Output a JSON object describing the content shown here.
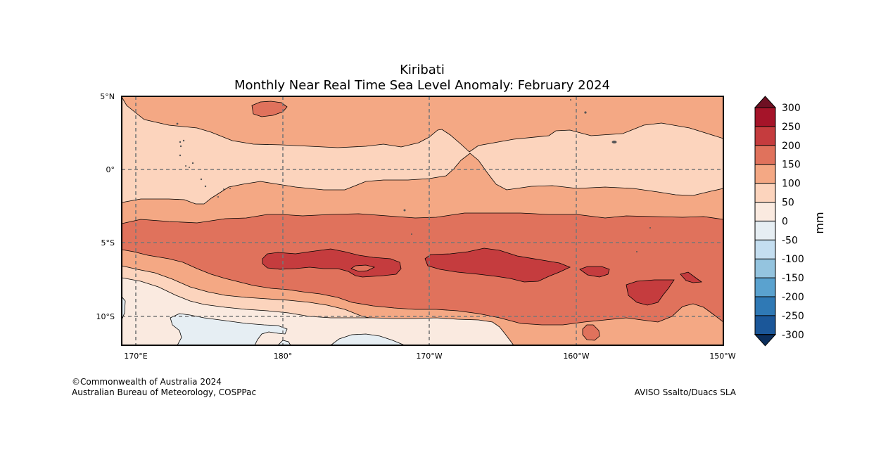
{
  "title": {
    "line1": "Kiribati",
    "line2": "Monthly Near Real Time Sea Level Anomaly: February 2024"
  },
  "map": {
    "lon_ticks": [
      "170°E",
      "180°",
      "170°W",
      "160°W",
      "150°W"
    ],
    "lat_ticks": [
      "5°N",
      "0°",
      "5°S",
      "10°S"
    ],
    "lon_range": [
      169,
      210
    ],
    "lat_range": [
      -12,
      5
    ]
  },
  "colorbar": {
    "unit_label": "mm",
    "levels": [
      "300",
      "250",
      "200",
      "150",
      "100",
      "50",
      "0",
      "-50",
      "-100",
      "-150",
      "-200",
      "-250",
      "-300"
    ],
    "colors": [
      "#a51429",
      "#c53c3e",
      "#e0725c",
      "#f4a884",
      "#fcd4bd",
      "#faeae0",
      "#e6eef3",
      "#c4def0",
      "#94c4df",
      "#5aa2cf",
      "#2f79b5",
      "#1b5799"
    ],
    "over_color": "#6e1023",
    "under_color": "#0b2e5c"
  },
  "credits": {
    "left_line1": "©Commonwealth of Australia 2024",
    "left_line2": "Australian Bureau of Meteorology, COSPPac",
    "right": "AVISO Ssalto/Duacs SLA"
  }
}
